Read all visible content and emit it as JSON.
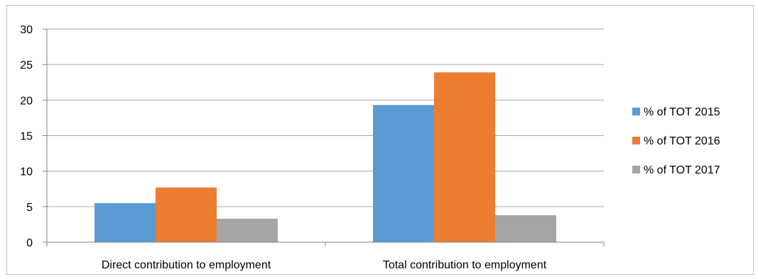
{
  "chart_data": {
    "type": "bar",
    "categories": [
      "Direct contribution to employment",
      "Total contribution to employment"
    ],
    "series": [
      {
        "name": "% of TOT 2015",
        "values": [
          5.5,
          19.3
        ],
        "color": "#5b9bd5"
      },
      {
        "name": "% of TOT 2016",
        "values": [
          7.7,
          23.9
        ],
        "color": "#ed7d31"
      },
      {
        "name": "% of TOT 2017",
        "values": [
          3.3,
          3.8
        ],
        "color": "#a5a5a5"
      }
    ],
    "yticks": [
      0,
      5,
      10,
      15,
      20,
      25,
      30
    ],
    "ylim": [
      0,
      30
    ],
    "grid": true,
    "legend_position": "right",
    "title": "",
    "xlabel": "",
    "ylabel": ""
  }
}
